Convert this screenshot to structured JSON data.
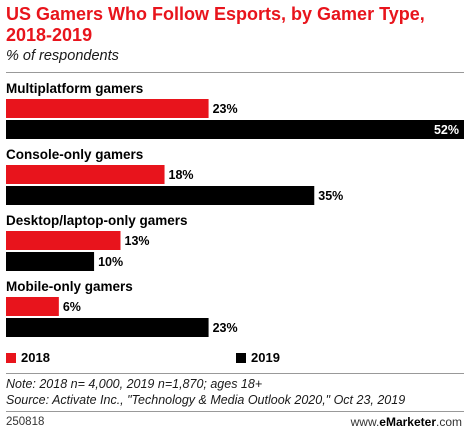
{
  "header": {
    "title": "US Gamers Who Follow Esports, by Gamer Type, 2018-2019",
    "subtitle": "% of respondents"
  },
  "colors": {
    "series_2018": "#e8141c",
    "series_2019": "#000000",
    "title": "#e8141c"
  },
  "legend": {
    "items": [
      "2018",
      "2019"
    ]
  },
  "notes": {
    "note": "Note: 2018 n= 4,000, 2019 n=1,870; ages 18+",
    "source": "Source: Activate Inc., \"Technology & Media Outlook 2020,\" Oct 23, 2019"
  },
  "footer": {
    "id": "250818",
    "site_prefix": "www.",
    "site_brand": "eMarketer",
    "site_suffix": ".com"
  },
  "chart_data": {
    "type": "bar",
    "orientation": "horizontal",
    "categories": [
      "Multiplatform gamers",
      "Console-only gamers",
      "Desktop/laptop-only gamers",
      "Mobile-only gamers"
    ],
    "series": [
      {
        "name": "2018",
        "values": [
          23,
          18,
          13,
          6
        ],
        "labels": [
          "23%",
          "18%",
          "13%",
          "6%"
        ]
      },
      {
        "name": "2019",
        "values": [
          52,
          35,
          10,
          23
        ],
        "labels": [
          "52%",
          "35%",
          "10%",
          "23%"
        ]
      }
    ],
    "ylabel": "% of respondents",
    "xlim": [
      0,
      52
    ],
    "grid": false,
    "legend_position": "bottom"
  }
}
